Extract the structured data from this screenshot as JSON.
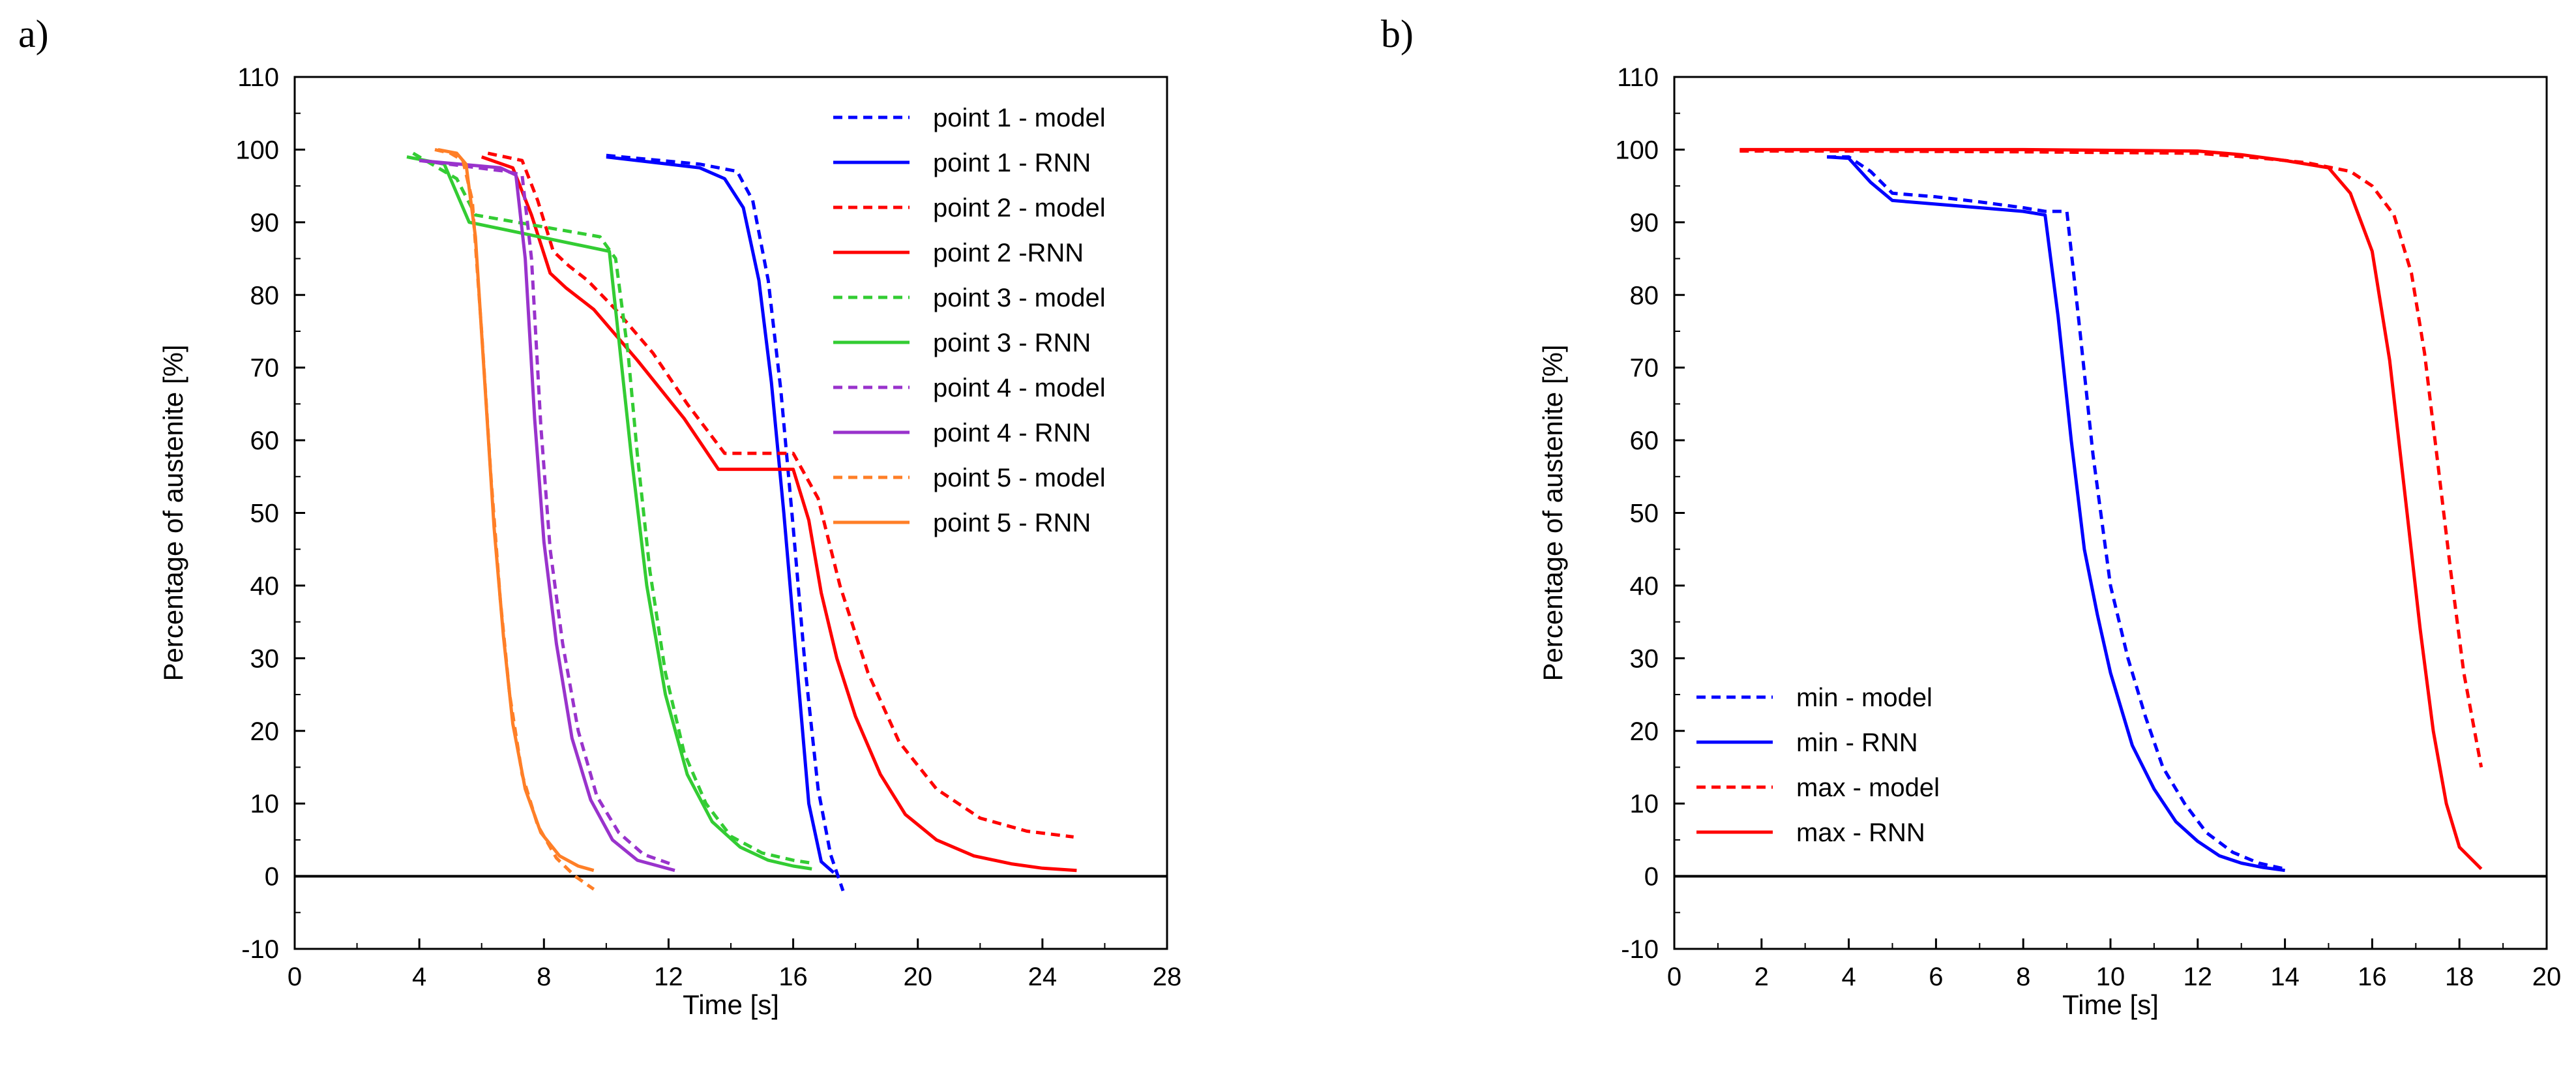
{
  "figure": {
    "panel_labels": [
      "a)",
      "b)"
    ]
  },
  "chart_data": [
    {
      "type": "line",
      "panel": "a)",
      "title": "",
      "xlabel": "Time [s]",
      "ylabel": "Percentage of austenite [%]",
      "xlim": [
        0,
        28
      ],
      "ylim": [
        -10,
        110
      ],
      "xticks": [
        0,
        4,
        8,
        12,
        16,
        20,
        24,
        28
      ],
      "yticks": [
        -10,
        0,
        10,
        20,
        30,
        40,
        50,
        60,
        70,
        80,
        90,
        100,
        110
      ],
      "zero_line": 0,
      "grid": false,
      "legend_position": "top-right",
      "series": [
        {
          "name": "point 1 - model",
          "color": "#0000ff",
          "dash": true,
          "x": [
            10.0,
            13.0,
            14.2,
            14.7,
            15.2,
            15.6,
            16.0,
            16.4,
            16.8,
            17.2,
            17.6
          ],
          "y": [
            99.2,
            98.0,
            97.0,
            93.0,
            82.0,
            67.0,
            48.0,
            28.0,
            12.0,
            3.0,
            -2.0
          ]
        },
        {
          "name": "point 1 - RNN",
          "color": "#0000ff",
          "dash": false,
          "x": [
            10.0,
            13.0,
            13.8,
            14.4,
            14.9,
            15.3,
            15.7,
            16.1,
            16.5,
            16.9,
            17.3
          ],
          "y": [
            99.0,
            97.5,
            96.0,
            92.0,
            82.0,
            68.0,
            50.0,
            30.0,
            10.0,
            2.0,
            0.5
          ]
        },
        {
          "name": "point 2 - model",
          "color": "#ff0000",
          "dash": true,
          "x": [
            6.2,
            7.3,
            7.8,
            8.3,
            8.8,
            9.4,
            10.3,
            11.5,
            12.6,
            13.8,
            16.0,
            16.8,
            17.5,
            18.4,
            19.4,
            20.6,
            22.0,
            23.5,
            25.0
          ],
          "y": [
            99.5,
            98.5,
            93.0,
            86.0,
            84.0,
            82.0,
            78.0,
            72.0,
            65.0,
            58.2,
            58.2,
            52.0,
            40.0,
            28.0,
            18.5,
            12.0,
            8.0,
            6.2,
            5.4
          ]
        },
        {
          "name": "point 2 -RNN",
          "color": "#ff0000",
          "dash": false,
          "x": [
            6.0,
            7.0,
            7.6,
            8.2,
            8.7,
            9.6,
            11.0,
            12.5,
            13.6,
            16.0,
            16.5,
            16.9,
            17.4,
            18.0,
            18.8,
            19.6,
            20.6,
            21.8,
            23.0,
            24.0,
            25.1
          ],
          "y": [
            99.0,
            97.5,
            91.0,
            83.0,
            81.0,
            78.0,
            71.0,
            63.0,
            56.0,
            56.0,
            49.0,
            39.0,
            30.0,
            22.0,
            14.0,
            8.5,
            5.0,
            2.8,
            1.7,
            1.1,
            0.8
          ]
        },
        {
          "name": "point 3 - model",
          "color": "#33cc33",
          "dash": true,
          "x": [
            3.8,
            5.2,
            5.8,
            9.8,
            10.3,
            10.7,
            11.0,
            11.4,
            11.9,
            12.5,
            13.2,
            14.0,
            15.0,
            16.0,
            16.6
          ],
          "y": [
            99.5,
            96.0,
            91.0,
            88.0,
            85.0,
            72.0,
            58.0,
            42.0,
            28.0,
            17.0,
            10.0,
            5.5,
            3.2,
            2.2,
            1.8
          ]
        },
        {
          "name": "point 3 - RNN",
          "color": "#33cc33",
          "dash": false,
          "x": [
            3.6,
            4.8,
            5.2,
            5.6,
            10.1,
            10.4,
            10.8,
            11.3,
            11.9,
            12.6,
            13.4,
            14.3,
            15.2,
            16.0,
            16.6
          ],
          "y": [
            99.0,
            98.0,
            94.0,
            90.0,
            86.0,
            74.0,
            58.0,
            40.0,
            25.0,
            14.0,
            7.5,
            4.0,
            2.2,
            1.4,
            1.0
          ]
        },
        {
          "name": "point 4 - model",
          "color": "#9933cc",
          "dash": true,
          "x": [
            4.0,
            6.8,
            7.3,
            7.6,
            7.9,
            8.2,
            8.6,
            9.1,
            9.7,
            10.4,
            11.2,
            12.2
          ],
          "y": [
            98.5,
            97.0,
            96.5,
            85.0,
            62.0,
            45.0,
            32.0,
            20.0,
            11.0,
            6.0,
            3.0,
            1.5
          ]
        },
        {
          "name": "point 4 - RNN",
          "color": "#9933cc",
          "dash": false,
          "x": [
            4.0,
            6.6,
            7.1,
            7.4,
            7.7,
            8.0,
            8.4,
            8.9,
            9.5,
            10.2,
            11.0,
            12.2
          ],
          "y": [
            98.5,
            97.5,
            96.5,
            85.0,
            63.0,
            46.0,
            32.0,
            19.0,
            10.5,
            5.0,
            2.2,
            0.8
          ]
        },
        {
          "name": "point 5 - model",
          "color": "#ff7f27",
          "dash": true,
          "x": [
            4.5,
            5.0,
            5.4,
            5.7,
            6.0,
            6.3,
            6.6,
            6.9,
            7.3,
            7.8,
            8.4,
            9.0,
            9.6
          ],
          "y": [
            100.0,
            99.5,
            98.5,
            93.0,
            75.0,
            55.0,
            38.0,
            25.0,
            14.0,
            7.0,
            2.5,
            0.0,
            -1.8
          ]
        },
        {
          "name": "point 5 - RNN",
          "color": "#ff7f27",
          "dash": false,
          "x": [
            4.6,
            5.2,
            5.5,
            5.8,
            6.1,
            6.4,
            6.7,
            7.0,
            7.4,
            7.9,
            8.5,
            9.1,
            9.6
          ],
          "y": [
            100.0,
            99.5,
            98.0,
            88.0,
            68.0,
            48.0,
            33.0,
            21.0,
            12.0,
            6.0,
            2.8,
            1.4,
            0.8
          ]
        }
      ]
    },
    {
      "type": "line",
      "panel": "b)",
      "title": "",
      "xlabel": "Time [s]",
      "ylabel": "Percentage of austenite [%]",
      "xlim": [
        0,
        20
      ],
      "ylim": [
        -10,
        110
      ],
      "xticks": [
        0,
        2,
        4,
        6,
        8,
        10,
        12,
        14,
        16,
        18,
        20
      ],
      "yticks": [
        -10,
        0,
        10,
        20,
        30,
        40,
        50,
        60,
        70,
        80,
        90,
        100,
        110
      ],
      "zero_line": 0,
      "grid": false,
      "legend_position": "bottom-left",
      "series": [
        {
          "name": "min - model",
          "color": "#0000ff",
          "dash": true,
          "x": [
            3.5,
            4.0,
            4.5,
            5.0,
            6.0,
            7.0,
            8.0,
            8.5,
            9.0,
            9.3,
            9.6,
            10.0,
            10.4,
            10.8,
            11.2,
            11.7,
            12.2,
            12.8,
            13.4,
            14.0
          ],
          "y": [
            99.0,
            99.0,
            97.0,
            94.0,
            93.5,
            92.8,
            92.0,
            91.5,
            91.5,
            75.0,
            58.0,
            40.0,
            30.0,
            22.0,
            15.0,
            10.0,
            6.0,
            3.3,
            1.8,
            1.0
          ]
        },
        {
          "name": "min - RNN",
          "color": "#0000ff",
          "dash": false,
          "x": [
            3.5,
            4.0,
            4.5,
            5.0,
            6.0,
            7.0,
            8.0,
            8.5,
            8.8,
            9.1,
            9.4,
            9.7,
            10.0,
            10.5,
            11.0,
            11.5,
            12.0,
            12.5,
            13.0,
            13.5,
            14.0
          ],
          "y": [
            99.0,
            98.8,
            95.5,
            93.0,
            92.5,
            92.0,
            91.5,
            91.0,
            77.0,
            60.0,
            45.0,
            36.0,
            28.0,
            18.0,
            12.0,
            7.5,
            4.8,
            2.8,
            1.8,
            1.2,
            0.8
          ]
        },
        {
          "name": "max - model",
          "color": "#ff0000",
          "dash": true,
          "x": [
            1.5,
            4.0,
            8.0,
            12.0,
            13.5,
            14.5,
            15.5,
            16.0,
            16.5,
            16.9,
            17.2,
            17.5,
            17.8,
            18.1,
            18.5
          ],
          "y": [
            99.8,
            99.8,
            99.7,
            99.5,
            98.8,
            98.2,
            97.0,
            95.0,
            91.0,
            83.0,
            72.0,
            57.0,
            42.0,
            28.0,
            15.0
          ]
        },
        {
          "name": "max - RNN",
          "color": "#ff0000",
          "dash": false,
          "x": [
            1.5,
            4.0,
            8.0,
            12.0,
            13.0,
            14.0,
            15.0,
            15.5,
            16.0,
            16.4,
            16.8,
            17.1,
            17.4,
            17.7,
            18.0,
            18.5
          ],
          "y": [
            100.0,
            100.0,
            100.0,
            99.8,
            99.3,
            98.5,
            97.5,
            94.0,
            86.0,
            71.0,
            50.0,
            34.0,
            20.0,
            10.0,
            4.0,
            1.0
          ]
        }
      ]
    }
  ]
}
